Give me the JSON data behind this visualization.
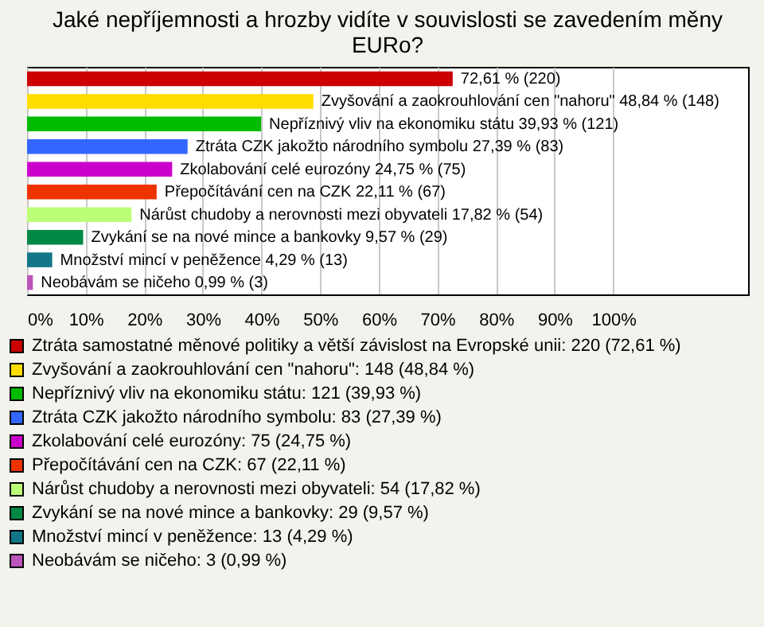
{
  "chart_data": {
    "type": "bar",
    "orientation": "horizontal",
    "stacked": true,
    "title": "Jaké nepříjemnosti a hrozby vidíte v souvislosti se zavedením měny EURo?",
    "categories": [
      null,
      null,
      null,
      null,
      null,
      null,
      null,
      null,
      null,
      null
    ],
    "series": [
      {
        "name": "Ztráta samostatné měnové politiky a větší závislost na Evropské unii: 220 (72,61 %)",
        "color": "#cc0000",
        "values": [
          72.61,
          null,
          null,
          null,
          null,
          null,
          null,
          null,
          null,
          null
        ],
        "value_labels": [
          "72,61 % (220)",
          null,
          null,
          null,
          null,
          null,
          null,
          null,
          null,
          null
        ]
      },
      {
        "name": "Zvyšování a zaokrouhlování cen \"nahoru\": 148 (48,84 %)",
        "color": "#ffdd00",
        "values": [
          null,
          48.84,
          null,
          null,
          null,
          null,
          null,
          null,
          null,
          null
        ],
        "value_labels": [
          null,
          "Zvyšování a zaokrouhlování cen \"nahoru\" 48,84 % (148)",
          null,
          null,
          null,
          null,
          null,
          null,
          null,
          null
        ]
      },
      {
        "name": "Nepříznivý vliv na ekonomiku státu: 121 (39,93 %)",
        "color": "#00bb00",
        "values": [
          null,
          null,
          39.93,
          null,
          null,
          null,
          null,
          null,
          null,
          null
        ],
        "value_labels": [
          null,
          null,
          "Nepříznivý vliv na ekonomiku státu 39,93 % (121)",
          null,
          null,
          null,
          null,
          null,
          null,
          null
        ]
      },
      {
        "name": "Ztráta CZK jakožto národního symbolu: 83 (27,39 %)",
        "color": "#3366ff",
        "values": [
          null,
          null,
          null,
          27.39,
          null,
          null,
          null,
          null,
          null,
          null
        ],
        "value_labels": [
          null,
          null,
          null,
          "Ztráta CZK jakožto národního symbolu 27,39 % (83)",
          null,
          null,
          null,
          null,
          null,
          null
        ]
      },
      {
        "name": "Zkolabování celé eurozóny: 75 (24,75 %)",
        "color": "#cc00cc",
        "values": [
          null,
          null,
          null,
          null,
          24.75,
          null,
          null,
          null,
          null,
          null
        ],
        "value_labels": [
          null,
          null,
          null,
          null,
          "Zkolabování celé eurozóny 24,75 % (75)",
          null,
          null,
          null,
          null,
          null
        ]
      },
      {
        "name": "Přepočítávání cen na CZK: 67 (22,11 %)",
        "color": "#ee3300",
        "values": [
          null,
          null,
          null,
          null,
          null,
          22.11,
          null,
          null,
          null,
          null
        ],
        "value_labels": [
          null,
          null,
          null,
          null,
          null,
          "Přepočítávání cen na CZK 22,11 % (67)",
          null,
          null,
          null,
          null
        ]
      },
      {
        "name": "Nárůst chudoby a nerovnosti mezi obyvateli: 54 (17,82 %)",
        "color": "#bbff77",
        "values": [
          null,
          null,
          null,
          null,
          null,
          null,
          17.82,
          null,
          null,
          null
        ],
        "value_labels": [
          null,
          null,
          null,
          null,
          null,
          null,
          "Nárůst chudoby a nerovnosti mezi obyvateli 17,82 % (54)",
          null,
          null,
          null
        ]
      },
      {
        "name": "Zvykání se na nové mince a bankovky: 29 (9,57 %)",
        "color": "#008844",
        "values": [
          null,
          null,
          null,
          null,
          null,
          null,
          null,
          9.57,
          null,
          null
        ],
        "value_labels": [
          null,
          null,
          null,
          null,
          null,
          null,
          null,
          "Zvykání se na nové mince a bankovky 9,57 % (29)",
          null,
          null
        ]
      },
      {
        "name": "Množství mincí v peněžence: 13 (4,29 %)",
        "color": "#117788",
        "values": [
          null,
          null,
          null,
          null,
          null,
          null,
          null,
          null,
          4.29,
          null
        ],
        "value_labels": [
          null,
          null,
          null,
          null,
          null,
          null,
          null,
          null,
          "Množství mincí v peněžence 4,29 % (13)",
          null
        ]
      },
      {
        "name": "Neobávám se ničeho: 3 (0,99 %)",
        "color": "#bb55bb",
        "values": [
          null,
          null,
          null,
          null,
          null,
          null,
          null,
          null,
          null,
          0.99
        ],
        "value_labels": [
          null,
          null,
          null,
          null,
          null,
          null,
          null,
          null,
          null,
          "Neobávám se ničeho 0,99 % (3)"
        ]
      }
    ],
    "xlim": [
      0,
      123
    ],
    "xticks": [
      {
        "value": 0,
        "label": "0%"
      },
      {
        "value": 10,
        "label": "10%"
      },
      {
        "value": 20,
        "label": "20%"
      },
      {
        "value": 30,
        "label": "30%"
      },
      {
        "value": 40,
        "label": "40%"
      },
      {
        "value": 50,
        "label": "50%"
      },
      {
        "value": 60,
        "label": "60%"
      },
      {
        "value": 70,
        "label": "70%"
      },
      {
        "value": 80,
        "label": "80%"
      },
      {
        "value": 90,
        "label": "90%"
      },
      {
        "value": 100,
        "label": "100%"
      }
    ],
    "grid": "x",
    "legend": "bottom",
    "tick_labels": "x"
  }
}
